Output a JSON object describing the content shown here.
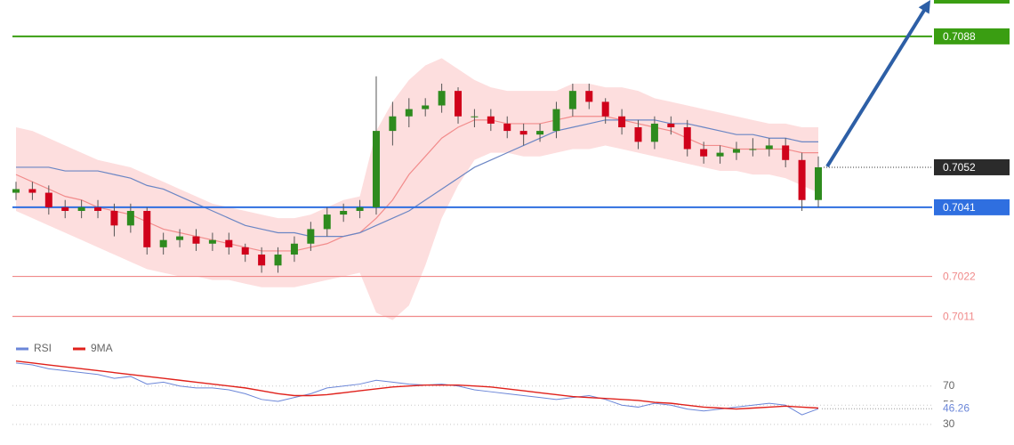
{
  "chart_data": [
    {
      "type": "candlestick",
      "ylim": [
        0.7005,
        0.7098
      ],
      "up_color": "#2e8b1e",
      "down_color": "#d0021b",
      "open": [
        0.7045,
        0.7046,
        0.7045,
        0.7041,
        0.704,
        0.7041,
        0.704,
        0.7036,
        0.704,
        0.703,
        0.7032,
        0.7033,
        0.7031,
        0.7032,
        0.703,
        0.7028,
        0.7025,
        0.7028,
        0.7031,
        0.7035,
        0.7039,
        0.704,
        0.7041,
        0.7062,
        0.7066,
        0.7068,
        0.7069,
        0.7073,
        0.7066,
        0.7066,
        0.7064,
        0.7062,
        0.7061,
        0.7062,
        0.7068,
        0.7073,
        0.707,
        0.7066,
        0.7063,
        0.7059,
        0.7064,
        0.7063,
        0.7057,
        0.7055,
        0.7056,
        0.7057,
        0.7057,
        0.7058,
        0.7054,
        0.7043
      ],
      "high": [
        0.7048,
        0.7048,
        0.7047,
        0.7043,
        0.7043,
        0.7043,
        0.7042,
        0.7042,
        0.7041,
        0.7034,
        0.7035,
        0.7035,
        0.7034,
        0.7034,
        0.7031,
        0.703,
        0.703,
        0.7033,
        0.7037,
        0.7041,
        0.7042,
        0.7043,
        0.7077,
        0.707,
        0.7071,
        0.7071,
        0.7075,
        0.7074,
        0.7068,
        0.7068,
        0.7066,
        0.7064,
        0.7064,
        0.707,
        0.7075,
        0.7075,
        0.7071,
        0.7068,
        0.7065,
        0.7066,
        0.7066,
        0.7065,
        0.7059,
        0.7058,
        0.7059,
        0.706,
        0.706,
        0.706,
        0.7056,
        0.7055
      ],
      "low": [
        0.7043,
        0.7043,
        0.7039,
        0.7038,
        0.7038,
        0.7038,
        0.7033,
        0.7034,
        0.7028,
        0.7028,
        0.703,
        0.7029,
        0.7029,
        0.7028,
        0.7026,
        0.7023,
        0.7023,
        0.7026,
        0.7029,
        0.7033,
        0.7037,
        0.7038,
        0.7039,
        0.7058,
        0.7063,
        0.7066,
        0.7067,
        0.7064,
        0.7063,
        0.7062,
        0.706,
        0.7058,
        0.7059,
        0.706,
        0.7066,
        0.7068,
        0.7064,
        0.7061,
        0.7057,
        0.7057,
        0.7061,
        0.7055,
        0.7053,
        0.7053,
        0.7054,
        0.7055,
        0.7055,
        0.7052,
        0.704,
        0.7041
      ],
      "close": [
        0.7046,
        0.7045,
        0.7041,
        0.704,
        0.7041,
        0.704,
        0.7036,
        0.704,
        0.703,
        0.7032,
        0.7033,
        0.7031,
        0.7032,
        0.703,
        0.7028,
        0.7025,
        0.7028,
        0.7031,
        0.7035,
        0.7039,
        0.704,
        0.7041,
        0.7062,
        0.7066,
        0.7068,
        0.7069,
        0.7073,
        0.7066,
        0.7066,
        0.7064,
        0.7062,
        0.7061,
        0.7062,
        0.7068,
        0.7073,
        0.707,
        0.7066,
        0.7063,
        0.7059,
        0.7064,
        0.7063,
        0.7057,
        0.7055,
        0.7056,
        0.7057,
        0.7057,
        0.7058,
        0.7054,
        0.7043,
        0.7052
      ],
      "band": {
        "color": "#fddede",
        "upper": [
          0.7063,
          0.7062,
          0.706,
          0.7058,
          0.7056,
          0.7054,
          0.7053,
          0.7052,
          0.705,
          0.7048,
          0.7046,
          0.7044,
          0.7042,
          0.7041,
          0.704,
          0.7039,
          0.7038,
          0.7038,
          0.7039,
          0.7041,
          0.7043,
          0.7044,
          0.7062,
          0.707,
          0.7076,
          0.708,
          0.7082,
          0.7079,
          0.7076,
          0.7074,
          0.7073,
          0.7073,
          0.7073,
          0.7073,
          0.7075,
          0.7075,
          0.7074,
          0.7074,
          0.7073,
          0.7071,
          0.707,
          0.7069,
          0.7068,
          0.7067,
          0.7066,
          0.7065,
          0.7064,
          0.7064,
          0.7063,
          0.7063
        ],
        "lower": [
          0.704,
          0.7038,
          0.7036,
          0.7034,
          0.7032,
          0.703,
          0.7028,
          0.7026,
          0.7024,
          0.7023,
          0.7022,
          0.7022,
          0.7021,
          0.7021,
          0.702,
          0.7019,
          0.7019,
          0.7019,
          0.702,
          0.7021,
          0.7022,
          0.7023,
          0.7012,
          0.701,
          0.7014,
          0.7025,
          0.7038,
          0.7047,
          0.7054,
          0.7056,
          0.7056,
          0.7055,
          0.7055,
          0.7056,
          0.7057,
          0.7057,
          0.7058,
          0.7057,
          0.7056,
          0.7055,
          0.7054,
          0.7053,
          0.7052,
          0.7051,
          0.7051,
          0.705,
          0.705,
          0.7049,
          0.7047,
          0.7045
        ]
      },
      "series": [
        {
          "color": "#f28c8c",
          "values": [
            0.705,
            0.7048,
            0.7046,
            0.7044,
            0.7043,
            0.7041,
            0.704,
            0.7039,
            0.7037,
            0.7035,
            0.7034,
            0.7033,
            0.7032,
            0.7031,
            0.703,
            0.7029,
            0.7029,
            0.7029,
            0.703,
            0.7031,
            0.7033,
            0.7034,
            0.7038,
            0.7043,
            0.705,
            0.7055,
            0.706,
            0.7063,
            0.7065,
            0.7065,
            0.7064,
            0.7064,
            0.7064,
            0.7065,
            0.7066,
            0.7066,
            0.7066,
            0.7065,
            0.7064,
            0.7063,
            0.7062,
            0.706,
            0.7058,
            0.7058,
            0.7057,
            0.7057,
            0.7057,
            0.7057,
            0.7056,
            0.7056
          ]
        },
        {
          "color": "#6b86c4",
          "values": [
            0.7052,
            0.7052,
            0.7052,
            0.7051,
            0.7051,
            0.7051,
            0.705,
            0.7049,
            0.7047,
            0.7046,
            0.7044,
            0.7042,
            0.704,
            0.7038,
            0.7036,
            0.7035,
            0.7034,
            0.7034,
            0.7033,
            0.7033,
            0.7033,
            0.7034,
            0.7036,
            0.7038,
            0.704,
            0.7043,
            0.7046,
            0.7049,
            0.7052,
            0.7054,
            0.7056,
            0.7058,
            0.706,
            0.7062,
            0.7063,
            0.7064,
            0.7065,
            0.7065,
            0.7065,
            0.7065,
            0.7064,
            0.7064,
            0.7063,
            0.7062,
            0.7061,
            0.7061,
            0.706,
            0.706,
            0.7059,
            0.7059
          ]
        }
      ],
      "levels": [
        {
          "value": 0.7088,
          "color": "#3a9e12",
          "badge": true
        },
        {
          "value": 0.7041,
          "color": "#2f6fe0",
          "badge": true
        },
        {
          "value": 0.7022,
          "color": "#f08a8a",
          "badge": false
        },
        {
          "value": 0.7011,
          "color": "#f08a8a",
          "badge": false
        }
      ],
      "last_price_color": "#2b2b2b"
    },
    {
      "type": "line",
      "ylim": [
        15,
        105
      ],
      "yticks": [
        70,
        50,
        30
      ],
      "series": [
        {
          "name": "RSI",
          "color": "#6b86d8",
          "values": [
            94,
            92,
            88,
            86,
            84,
            82,
            78,
            80,
            72,
            74,
            70,
            68,
            68,
            66,
            62,
            56,
            54,
            58,
            62,
            68,
            70,
            72,
            76,
            74,
            72,
            71,
            72,
            70,
            66,
            64,
            62,
            60,
            58,
            56,
            58,
            60,
            56,
            50,
            48,
            52,
            50,
            46,
            44,
            46,
            48,
            50,
            52,
            50,
            40,
            46.26
          ]
        },
        {
          "name": "9MA",
          "color": "#e0211b",
          "values": [
            96,
            94,
            92,
            90,
            88,
            86,
            84,
            82,
            80,
            78,
            76,
            74,
            72,
            70,
            68,
            65,
            62,
            60,
            60,
            61,
            63,
            65,
            67,
            69,
            70,
            71,
            71,
            71,
            70,
            69,
            67,
            65,
            63,
            61,
            59,
            58,
            57,
            56,
            55,
            53,
            52,
            50,
            48,
            47,
            46,
            47,
            48,
            49,
            48,
            47
          ]
        }
      ]
    }
  ]
}
